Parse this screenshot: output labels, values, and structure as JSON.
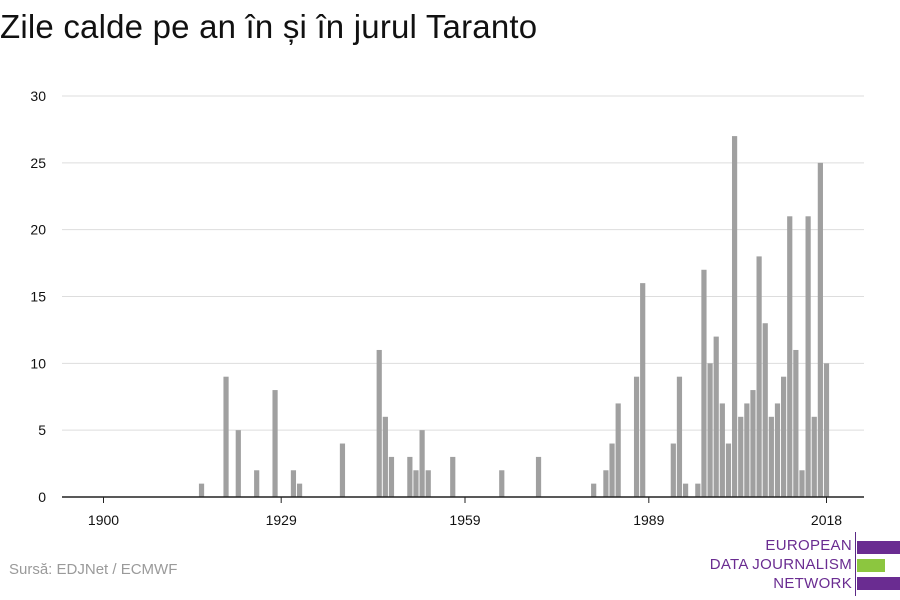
{
  "title": "Zile calde pe an în și în jurul Taranto",
  "source": "Sursă: EDJNet / ECMWF",
  "logo": {
    "lines": [
      "EUROPEAN",
      "DATA JOURNALISM",
      "NETWORK"
    ],
    "text_color": "#6a2c91",
    "bar_colors": [
      "#6a2c91",
      "#8cc63f",
      "#6a2c91"
    ]
  },
  "colors": {
    "bar": "#a0a0a0",
    "grid": "#dddddd",
    "axis": "#222222"
  },
  "chart_data": {
    "type": "bar",
    "title": "Zile calde pe an în și în jurul Taranto",
    "xlabel": "",
    "ylabel": "",
    "xlim": [
      1900,
      2018
    ],
    "ylim": [
      0,
      30
    ],
    "yticks": [
      0,
      5,
      10,
      15,
      20,
      25,
      30
    ],
    "xticks": [
      "1900",
      "1929",
      "1959",
      "1989",
      "2018"
    ],
    "grid": true,
    "series": [
      {
        "name": "",
        "points": [
          {
            "x": 1916,
            "y": 1
          },
          {
            "x": 1920,
            "y": 9
          },
          {
            "x": 1922,
            "y": 5
          },
          {
            "x": 1925,
            "y": 2
          },
          {
            "x": 1928,
            "y": 8
          },
          {
            "x": 1931,
            "y": 2
          },
          {
            "x": 1932,
            "y": 1
          },
          {
            "x": 1939,
            "y": 4
          },
          {
            "x": 1945,
            "y": 11
          },
          {
            "x": 1946,
            "y": 6
          },
          {
            "x": 1947,
            "y": 3
          },
          {
            "x": 1950,
            "y": 3
          },
          {
            "x": 1951,
            "y": 2
          },
          {
            "x": 1952,
            "y": 5
          },
          {
            "x": 1953,
            "y": 2
          },
          {
            "x": 1957,
            "y": 3
          },
          {
            "x": 1965,
            "y": 2
          },
          {
            "x": 1971,
            "y": 3
          },
          {
            "x": 1980,
            "y": 1
          },
          {
            "x": 1982,
            "y": 2
          },
          {
            "x": 1983,
            "y": 4
          },
          {
            "x": 1984,
            "y": 7
          },
          {
            "x": 1987,
            "y": 9
          },
          {
            "x": 1988,
            "y": 16
          },
          {
            "x": 1993,
            "y": 4
          },
          {
            "x": 1994,
            "y": 9
          },
          {
            "x": 1995,
            "y": 1
          },
          {
            "x": 1997,
            "y": 1
          },
          {
            "x": 1998,
            "y": 17
          },
          {
            "x": 1999,
            "y": 10
          },
          {
            "x": 2000,
            "y": 12
          },
          {
            "x": 2001,
            "y": 7
          },
          {
            "x": 2002,
            "y": 4
          },
          {
            "x": 2003,
            "y": 27
          },
          {
            "x": 2004,
            "y": 6
          },
          {
            "x": 2005,
            "y": 7
          },
          {
            "x": 2006,
            "y": 8
          },
          {
            "x": 2007,
            "y": 18
          },
          {
            "x": 2008,
            "y": 13
          },
          {
            "x": 2009,
            "y": 6
          },
          {
            "x": 2010,
            "y": 7
          },
          {
            "x": 2011,
            "y": 9
          },
          {
            "x": 2012,
            "y": 21
          },
          {
            "x": 2013,
            "y": 11
          },
          {
            "x": 2014,
            "y": 2
          },
          {
            "x": 2015,
            "y": 21
          },
          {
            "x": 2016,
            "y": 6
          },
          {
            "x": 2017,
            "y": 25
          },
          {
            "x": 2018,
            "y": 10
          }
        ]
      }
    ]
  }
}
